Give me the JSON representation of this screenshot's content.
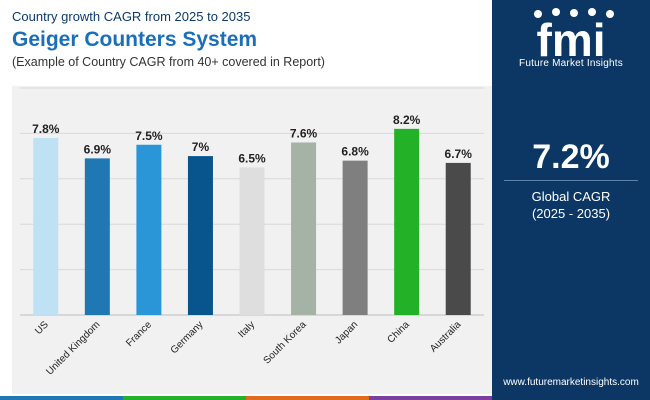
{
  "header": {
    "subtitle": "Country growth CAGR from 2025 to 2035",
    "title": "Geiger Counters System",
    "note": "(Example of Country CAGR from 40+ covered in Report)"
  },
  "chart_data": {
    "type": "bar",
    "categories": [
      "US",
      "United Kingdom",
      "France",
      "Germany",
      "Italy",
      "South Korea",
      "Japan",
      "China",
      "Australia"
    ],
    "values": [
      7.8,
      6.9,
      7.5,
      7.0,
      6.5,
      7.6,
      6.8,
      8.2,
      6.7
    ],
    "labels": [
      "7.8%",
      "6.9%",
      "7.5%",
      "7%",
      "6.5%",
      "7.6%",
      "6.8%",
      "8.2%",
      "6.7%"
    ],
    "colors": [
      "#bfe1f4",
      "#1f77b4",
      "#2b96d7",
      "#08548d",
      "#dedede",
      "#a5b3a6",
      "#7f7f7f",
      "#22b127",
      "#4a4a4a"
    ],
    "ylim": [
      0,
      10
    ],
    "grid": true,
    "title": "",
    "xlabel": "",
    "ylabel": ""
  },
  "side": {
    "logo_mark": "fmi",
    "logo_text": "Future Market Insights",
    "kpi_value": "7.2%",
    "kpi_label_1": "Global CAGR",
    "kpi_label_2": "(2025 - 2035)",
    "website": "www.futuremarketinsights.com"
  },
  "colors": {
    "panel": "#0c3764",
    "title": "#1a6fb8",
    "strip": [
      "#1f77b4",
      "#22b127",
      "#e36b1e",
      "#7b3fa0"
    ]
  }
}
